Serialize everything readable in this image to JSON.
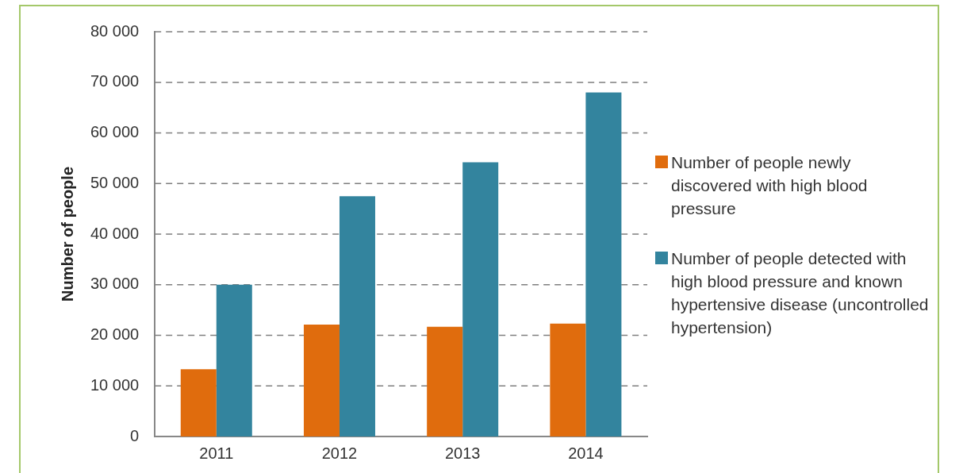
{
  "chart_data": {
    "type": "bar",
    "ylabel": "Number of people",
    "categories": [
      "2011",
      "2012",
      "2013",
      "2014"
    ],
    "series": [
      {
        "name": "Number of people newly discovered with high blood pressure",
        "color": "#e06c0d",
        "values": [
          13300,
          22100,
          21700,
          22300
        ]
      },
      {
        "name": "Number of people detected with high blood pressure and known hypertensive disease (uncontrolled hypertension)",
        "color": "#33849e",
        "values": [
          30000,
          47500,
          54200,
          68000
        ]
      }
    ],
    "ylim": [
      0,
      80000
    ],
    "yticks": [
      {
        "value": 0,
        "label": "0"
      },
      {
        "value": 10000,
        "label": "10 000"
      },
      {
        "value": 20000,
        "label": "20 000"
      },
      {
        "value": 30000,
        "label": "30 000"
      },
      {
        "value": 40000,
        "label": "40 000"
      },
      {
        "value": 50000,
        "label": "50 000"
      },
      {
        "value": 60000,
        "label": "60 000"
      },
      {
        "value": 70000,
        "label": "70 000"
      },
      {
        "value": 80000,
        "label": "80 000"
      }
    ],
    "grid": "y",
    "legend": "right"
  }
}
